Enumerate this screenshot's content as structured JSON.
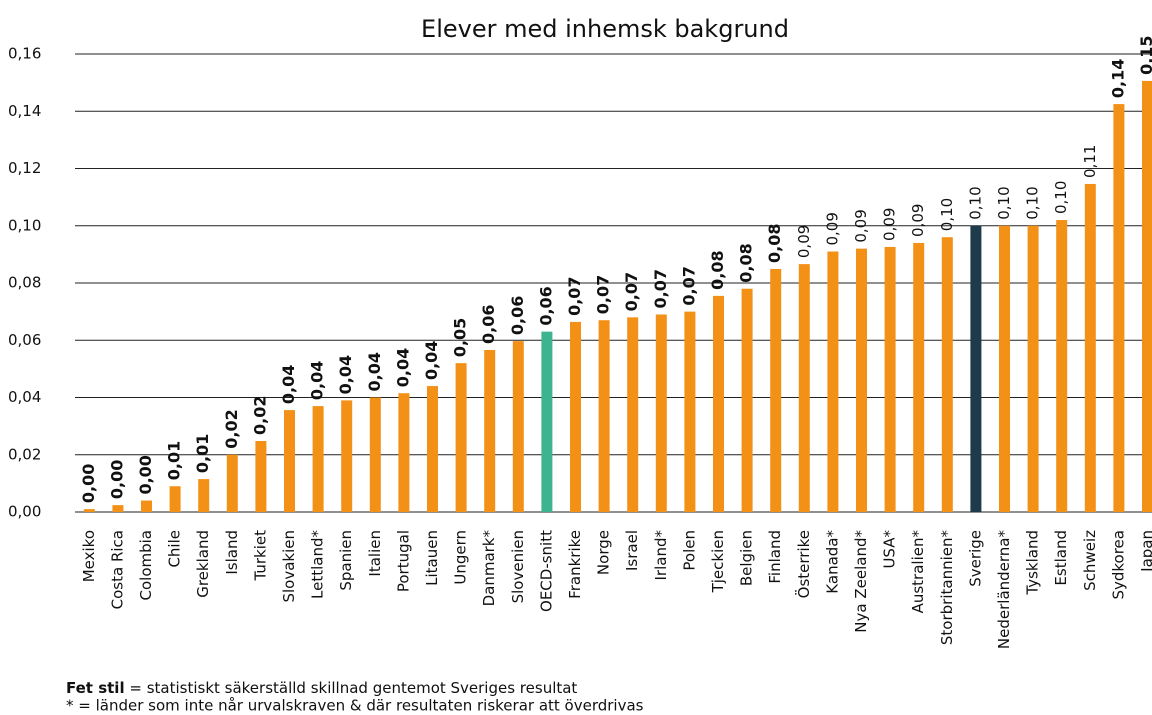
{
  "chart_data": {
    "type": "bar",
    "title": "Elever med inhemsk bakgrund",
    "categories": [
      "Mexiko",
      "Costa Rica",
      "Colombia",
      "Chile",
      "Grekland",
      "Island",
      "Turkiet",
      "Slovakien",
      "Lettland*",
      "Spanien",
      "Italien",
      "Portugal",
      "Litauen",
      "Ungern",
      "Danmark*",
      "Slovenien",
      "OECD-snitt",
      "Frankrike",
      "Norge",
      "Israel",
      "Irland*",
      "Polen",
      "Tjeckien",
      "Belgien",
      "Finland",
      "Österrike",
      "Kanada*",
      "Nya Zeeland*",
      "USA*",
      "Australien*",
      "Storbritannien*",
      "Sverige",
      "Nederländerna*",
      "Tyskland",
      "Estland",
      "Schweiz",
      "Sydkorea",
      "Japan"
    ],
    "values": [
      0.001,
      0.0024,
      0.004,
      0.009,
      0.0115,
      0.02,
      0.0248,
      0.0356,
      0.037,
      0.039,
      0.04,
      0.0415,
      0.044,
      0.052,
      0.0566,
      0.0597,
      0.063,
      0.0664,
      0.067,
      0.068,
      0.069,
      0.07,
      0.0755,
      0.078,
      0.0849,
      0.0866,
      0.091,
      0.092,
      0.0926,
      0.094,
      0.096,
      0.1,
      0.1,
      0.1,
      0.102,
      0.1146,
      0.1425,
      0.1506
    ],
    "value_labels": [
      "0,00",
      "0,00",
      "0,00",
      "0,01",
      "0,01",
      "0,02",
      "0,02",
      "0,04",
      "0,04",
      "0,04",
      "0,04",
      "0,04",
      "0,04",
      "0,05",
      "0,06",
      "0,06",
      "0,06",
      "0,07",
      "0,07",
      "0,07",
      "0,07",
      "0,07",
      "0,08",
      "0,08",
      "0,08",
      "0,09",
      "0,09",
      "0,09",
      "0,09",
      "0,09",
      "0,10",
      "0,10",
      "0,10",
      "0,10",
      "0,10",
      "0,11",
      "0,14",
      "0,15"
    ],
    "value_label_bold": [
      true,
      true,
      true,
      true,
      true,
      true,
      true,
      true,
      true,
      true,
      true,
      true,
      true,
      true,
      true,
      true,
      true,
      true,
      true,
      true,
      true,
      true,
      true,
      true,
      true,
      false,
      false,
      false,
      false,
      false,
      false,
      false,
      false,
      false,
      false,
      false,
      true,
      true
    ],
    "colors": [
      "#f39117",
      "#f39117",
      "#f39117",
      "#f39117",
      "#f39117",
      "#f39117",
      "#f39117",
      "#f39117",
      "#f39117",
      "#f39117",
      "#f39117",
      "#f39117",
      "#f39117",
      "#f39117",
      "#f39117",
      "#f39117",
      "#3db38f",
      "#f39117",
      "#f39117",
      "#f39117",
      "#f39117",
      "#f39117",
      "#f39117",
      "#f39117",
      "#f39117",
      "#f39117",
      "#f39117",
      "#f39117",
      "#f39117",
      "#f39117",
      "#f39117",
      "#1e3a4b",
      "#f39117",
      "#f39117",
      "#f39117",
      "#f39117",
      "#f39117",
      "#f39117"
    ],
    "ylim": [
      0,
      0.16
    ],
    "yticks": [
      {
        "value": 0,
        "label": "0,00"
      },
      {
        "value": 0.02,
        "label": "0,02"
      },
      {
        "value": 0.04,
        "label": "0,04"
      },
      {
        "value": 0.06,
        "label": "0,06"
      },
      {
        "value": 0.08,
        "label": "0,08"
      },
      {
        "value": 0.1,
        "label": "0,10"
      },
      {
        "value": 0.12,
        "label": "0,12"
      },
      {
        "value": 0.14,
        "label": "0,14"
      },
      {
        "value": 0.16,
        "label": "0,16"
      }
    ],
    "grid": true,
    "footnotes": [
      {
        "bold": "Fet stil",
        "text": " = statistiskt säkerställd skillnad gentemot Sveriges resultat"
      },
      {
        "text": "* = länder som inte når urvalskraven & där resultaten riskerar att överdrivas"
      }
    ]
  }
}
